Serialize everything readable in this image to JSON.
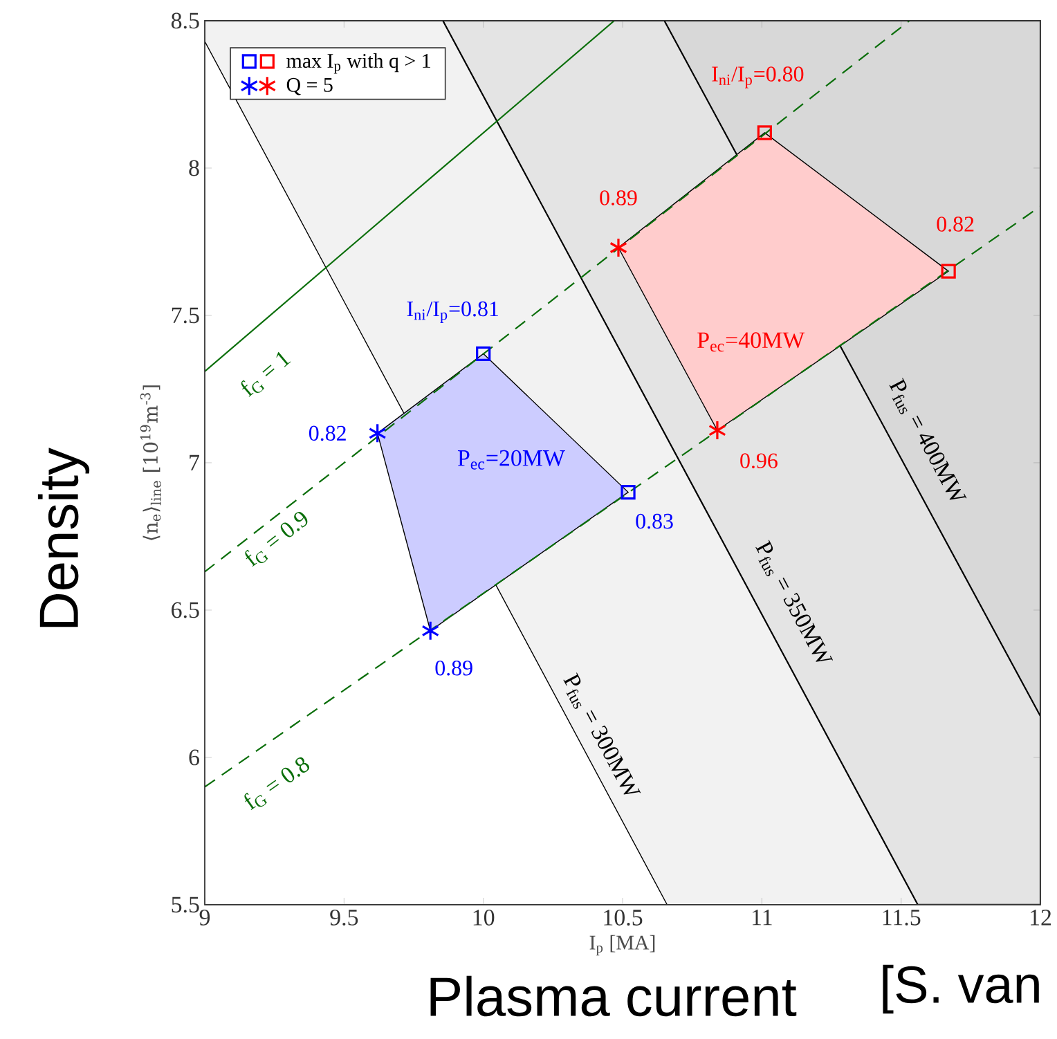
{
  "chart_data": {
    "type": "line",
    "xlabel": "I$_{p}$ [MA]",
    "ylabel": "⟨n$_{e}$⟩$_{line}$ [10$^{19}$m$^{-3}$]",
    "xlim": [
      9,
      12
    ],
    "ylim": [
      5.5,
      8.5
    ],
    "xticks": [
      9,
      9.5,
      10,
      10.5,
      11,
      11.5,
      12
    ],
    "yticks": [
      5.5,
      6,
      6.5,
      7,
      7.5,
      8,
      8.5
    ],
    "legend": "top left",
    "series": [
      {
        "type": "area",
        "color": "#f2f2f2",
        "x": [
          9,
          10.66,
          12,
          12,
          9
        ],
        "values": [
          8.43,
          5.5,
          5.5,
          8.5,
          8.5
        ]
      },
      {
        "type": "area",
        "color": "#e4e4e4",
        "x": [
          9.855,
          11.56,
          12,
          12
        ],
        "values": [
          8.5,
          5.5,
          5.5,
          8.5
        ]
      },
      {
        "type": "area",
        "color": "#d8d8d8",
        "x": [
          10.65,
          12,
          12
        ],
        "values": [
          8.5,
          6.14,
          8.5
        ]
      },
      {
        "type": "area",
        "color": "#ccccff",
        "x": [
          10.0,
          10.52,
          9.81,
          9.62
        ],
        "values": [
          7.37,
          6.9,
          6.43,
          7.1
        ]
      },
      {
        "type": "area",
        "color": "#ffcccc",
        "x": [
          11.01,
          11.67,
          10.84,
          10.485
        ],
        "values": [
          8.12,
          7.65,
          7.11,
          7.73
        ]
      },
      {
        "color": "#0a6e0a",
        "line_style": "solid",
        "x": [
          9,
          10.47
        ],
        "values": [
          7.31,
          8.5
        ]
      },
      {
        "color": "#0a6e0a",
        "line_style": "dashed",
        "x": [
          9,
          11.53
        ],
        "values": [
          6.63,
          8.5
        ]
      },
      {
        "color": "#0a6e0a",
        "line_style": "dashed",
        "x": [
          9,
          12
        ],
        "values": [
          5.9,
          7.87
        ]
      },
      {
        "type": "scatter",
        "name": "max I$_{p}$ with q > 1",
        "marker": "square",
        "colors": [
          "#0000ff",
          "#0000ff",
          "#ff0000",
          "#ff0000"
        ],
        "x": [
          10.0,
          10.52,
          11.01,
          11.67
        ],
        "values": [
          7.37,
          6.9,
          8.12,
          7.65
        ]
      },
      {
        "type": "scatter",
        "name": "Q = 5",
        "marker": "cross",
        "colors": [
          "#0000ff",
          "#0000ff",
          "#ff0000",
          "#ff0000"
        ],
        "x": [
          9.62,
          9.81,
          10.485,
          10.84
        ],
        "values": [
          7.1,
          6.43,
          7.73,
          7.11
        ]
      }
    ],
    "annotations": [
      {
        "text": "I$_{ni}$/I$_{p}$=0.81",
        "x": 10.0,
        "y": 7.37
      },
      {
        "text": "0.83",
        "x": 10.52,
        "y": 6.9
      },
      {
        "text": "I$_{ni}$/I$_{p}$=0.80",
        "x": 11.01,
        "y": 8.12
      },
      {
        "text": "0.82",
        "x": 11.67,
        "y": 7.65
      },
      {
        "text": "0.82",
        "x": 9.62,
        "y": 7.1
      },
      {
        "text": "0.89",
        "x": 9.81,
        "y": 6.43
      },
      {
        "text": "0.89",
        "x": 10.485,
        "y": 7.73
      },
      {
        "text": "0.96",
        "x": 10.84,
        "y": 7.11
      },
      "f$_{G}$ = 1",
      "f$_{G}$ = 0.9",
      "f$_{G}$ = 0.8",
      "P$_{fus}$ = 300MW",
      "P$_{fus}$ = 350MW",
      "P$_{fus}$ = 400MW",
      "P$_{ec}$=20MW",
      "P$_{ec}$=40MW",
      "Density",
      "Plasma current",
      "[S. van"
    ]
  }
}
